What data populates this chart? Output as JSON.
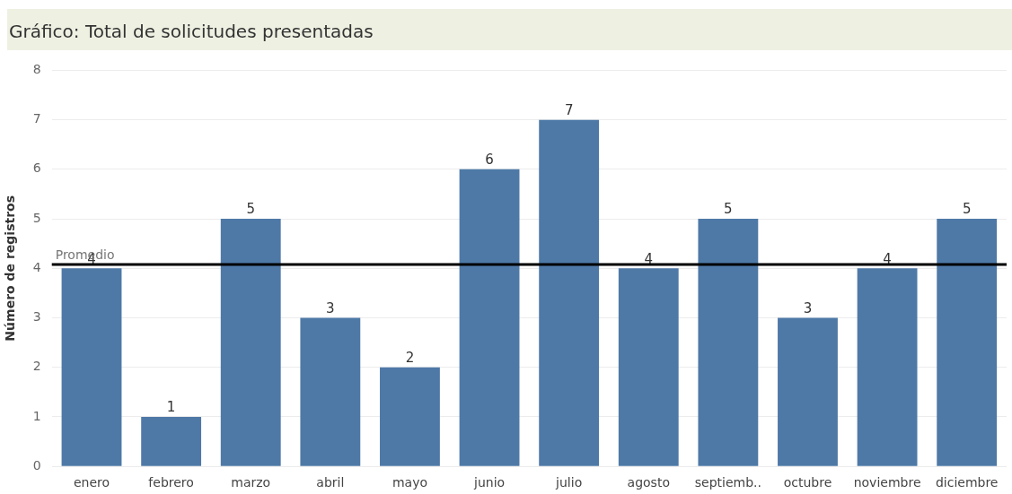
{
  "chart_data": {
    "type": "bar",
    "title": "Gráfico: Total de solicitudes presentadas",
    "ylabel": "Número de registros",
    "categories": [
      "enero",
      "febrero",
      "marzo",
      "abril",
      "mayo",
      "junio",
      "julio",
      "agosto",
      "septiemb..",
      "octubre",
      "noviembre",
      "diciembre"
    ],
    "values": [
      4,
      1,
      5,
      3,
      2,
      6,
      7,
      4,
      5,
      3,
      4,
      5
    ],
    "color": "#4e79a7",
    "ylim": [
      0,
      8
    ],
    "yticks": [
      0,
      1,
      2,
      3,
      4,
      5,
      6,
      7,
      8
    ],
    "grid": "y",
    "data_labels": true,
    "legend": false,
    "ref_lines": [
      {
        "axis": "y",
        "value": 4.08,
        "label": "Promedio",
        "color": "#000000"
      }
    ]
  }
}
